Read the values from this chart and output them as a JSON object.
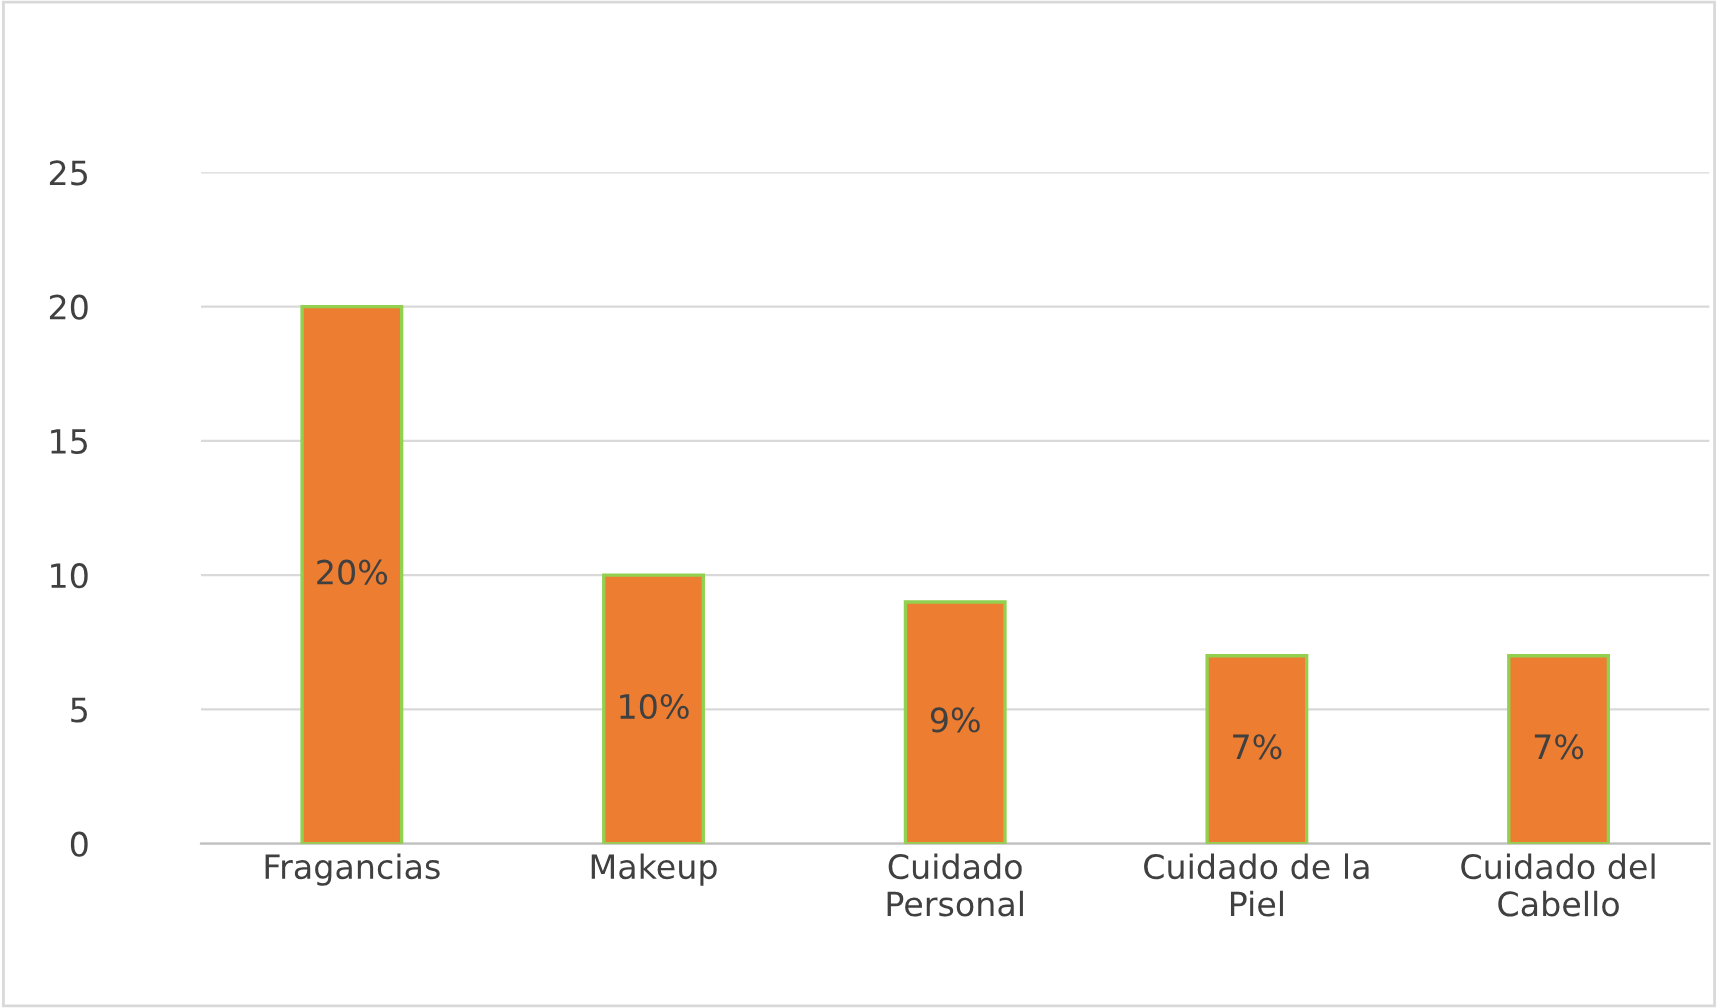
{
  "chart_data": {
    "type": "bar",
    "categories": [
      "Fragancias",
      "Makeup",
      "Cuidado\nPersonal",
      "Cuidado de la\nPiel",
      "Cuidado del\nCabello"
    ],
    "values": [
      20,
      10,
      9,
      7,
      7
    ],
    "value_labels": [
      "20%",
      "10%",
      "9%",
      "7%",
      "7%"
    ],
    "color": "#ed7d31",
    "ylim": [
      0,
      25
    ],
    "yticks": [
      0,
      5,
      10,
      15,
      20,
      25
    ],
    "grid": "y"
  }
}
